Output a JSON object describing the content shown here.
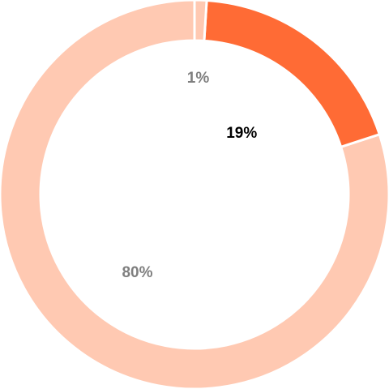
{
  "chart_data": {
    "type": "pie",
    "variant": "donut",
    "title": "",
    "slices": [
      {
        "value": 80,
        "label": "80%",
        "color": "#FFC9B2",
        "label_color": "#7f7f7f"
      },
      {
        "value": 19,
        "label": "19%",
        "color": "#FF6B35",
        "label_color": "#000000"
      },
      {
        "value": 1,
        "label": "1%",
        "color": "#FFC9B2",
        "label_color": "#7f7f7f"
      }
    ],
    "separator_color": "#ffffff",
    "legend": "none"
  }
}
